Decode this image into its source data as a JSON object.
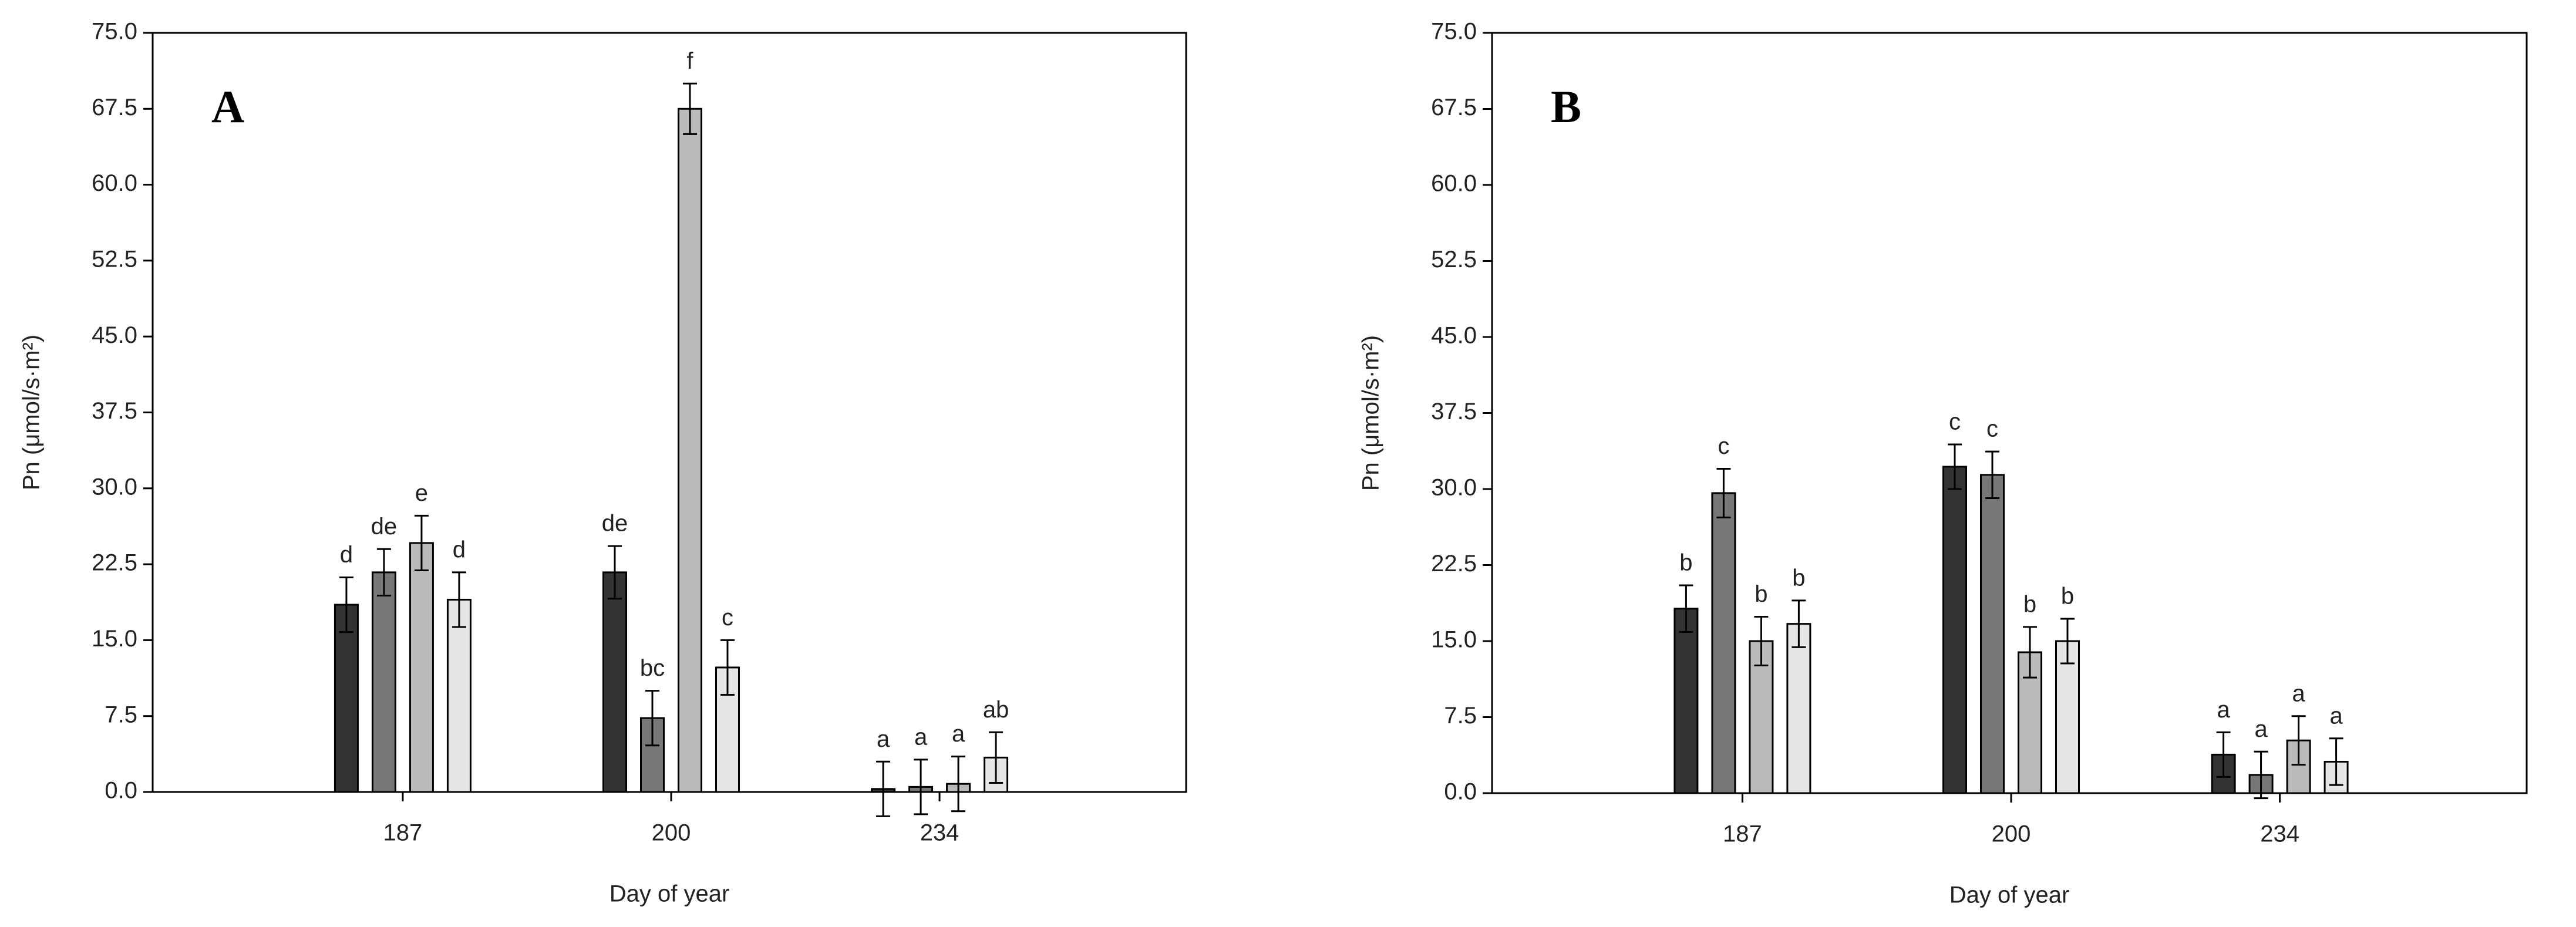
{
  "chart_data": [
    {
      "type": "bar",
      "panel_label": "A",
      "xlabel": "Day of year",
      "ylabel": "Pn (μmol/s·m²)",
      "categories": [
        "187",
        "200",
        "234"
      ],
      "ylim": [
        0,
        75
      ],
      "yticks": [
        {
          "value": 0,
          "label": "0.0"
        },
        7.5,
        {
          "value": 15,
          "label": "15.0"
        },
        22.5,
        {
          "value": 30,
          "label": "30.0"
        },
        37.5,
        {
          "value": 45,
          "label": "45.0"
        },
        52.5,
        {
          "value": 60,
          "label": "60.0"
        },
        67.5,
        {
          "value": 75,
          "label": "75.0"
        }
      ],
      "series": [
        {
          "color": "#333333",
          "values": [
            18.5,
            21.7,
            0.3
          ],
          "errors": [
            2.7,
            2.6,
            2.7
          ],
          "annotations": [
            "d",
            "de",
            "a"
          ]
        },
        {
          "color": "#777777",
          "values": [
            21.7,
            7.3,
            0.5
          ],
          "errors": [
            2.3,
            2.7,
            2.7
          ],
          "annotations": [
            "de",
            "bc",
            "a"
          ]
        },
        {
          "color": "#bbbbbb",
          "values": [
            24.6,
            67.5,
            0.8
          ],
          "errors": [
            2.7,
            2.5,
            2.7
          ],
          "annotations": [
            "e",
            "f",
            "a"
          ]
        },
        {
          "color": "#e6e6e6",
          "values": [
            19.0,
            12.3,
            3.4
          ],
          "errors": [
            2.7,
            2.7,
            2.5
          ],
          "annotations": [
            "d",
            "c",
            "ab"
          ]
        }
      ]
    },
    {
      "type": "bar",
      "panel_label": "B",
      "xlabel": "Day of year",
      "ylabel": "Pn (μmol/s·m²)",
      "categories": [
        "187",
        "200",
        "234"
      ],
      "ylim": [
        0,
        75
      ],
      "yticks": [
        {
          "value": 0,
          "label": "0.0"
        },
        7.5,
        {
          "value": 15,
          "label": "15.0"
        },
        22.5,
        {
          "value": 30,
          "label": "30.0"
        },
        37.5,
        {
          "value": 45,
          "label": "45.0"
        },
        52.5,
        {
          "value": 60,
          "label": "60.0"
        },
        67.5,
        {
          "value": 75,
          "label": "75.0"
        }
      ],
      "series": [
        {
          "color": "#333333",
          "values": [
            18.2,
            32.2,
            3.8
          ],
          "errors": [
            2.3,
            2.2,
            2.2
          ],
          "annotations": [
            "b",
            "c",
            "a"
          ]
        },
        {
          "color": "#777777",
          "values": [
            29.6,
            31.4,
            1.8
          ],
          "errors": [
            2.4,
            2.3,
            2.3
          ],
          "annotations": [
            "c",
            "c",
            "a"
          ]
        },
        {
          "color": "#bbbbbb",
          "values": [
            15.0,
            13.9,
            5.2
          ],
          "errors": [
            2.4,
            2.5,
            2.4
          ],
          "annotations": [
            "b",
            "b",
            "a"
          ]
        },
        {
          "color": "#e6e6e6",
          "values": [
            16.7,
            15.0,
            3.1
          ],
          "errors": [
            2.3,
            2.2,
            2.3
          ],
          "annotations": [
            "b",
            "b",
            "a"
          ]
        }
      ]
    }
  ]
}
